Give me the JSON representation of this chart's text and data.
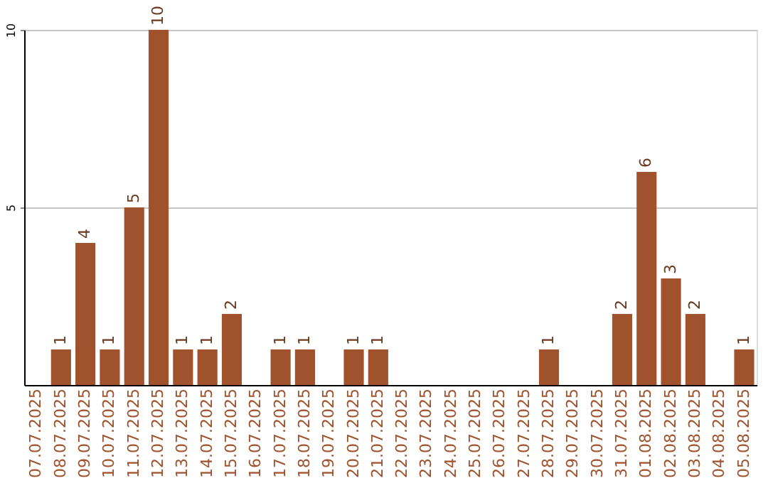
{
  "chart_data": {
    "type": "bar",
    "categories": [
      "07.07.2025",
      "08.07.2025",
      "09.07.2025",
      "10.07.2025",
      "11.07.2025",
      "12.07.2025",
      "13.07.2025",
      "14.07.2025",
      "15.07.2025",
      "16.07.2025",
      "17.07.2025",
      "18.07.2025",
      "19.07.2025",
      "20.07.2025",
      "21.07.2025",
      "22.07.2025",
      "23.07.2025",
      "24.07.2025",
      "25.07.2025",
      "26.07.2025",
      "27.07.2025",
      "28.07.2025",
      "29.07.2025",
      "30.07.2025",
      "31.07.2025",
      "01.08.2025",
      "02.08.2025",
      "03.08.2025",
      "04.08.2025",
      "05.08.2025"
    ],
    "values": [
      0,
      1,
      4,
      1,
      5,
      10,
      1,
      1,
      2,
      0,
      1,
      1,
      0,
      1,
      1,
      0,
      0,
      0,
      0,
      0,
      0,
      1,
      0,
      0,
      2,
      6,
      3,
      2,
      0,
      1
    ],
    "value_labels": [
      null,
      "1",
      "4",
      "1",
      "5",
      "10",
      "1",
      "1",
      "2",
      null,
      "1",
      "1",
      null,
      "1",
      "1",
      null,
      null,
      null,
      null,
      null,
      null,
      "1",
      null,
      null,
      "2",
      "6",
      "3",
      "2",
      null,
      "1"
    ],
    "color": "#a0522d",
    "ylim": [
      0,
      10
    ],
    "yticks": [
      5,
      10
    ],
    "grid": "y"
  }
}
